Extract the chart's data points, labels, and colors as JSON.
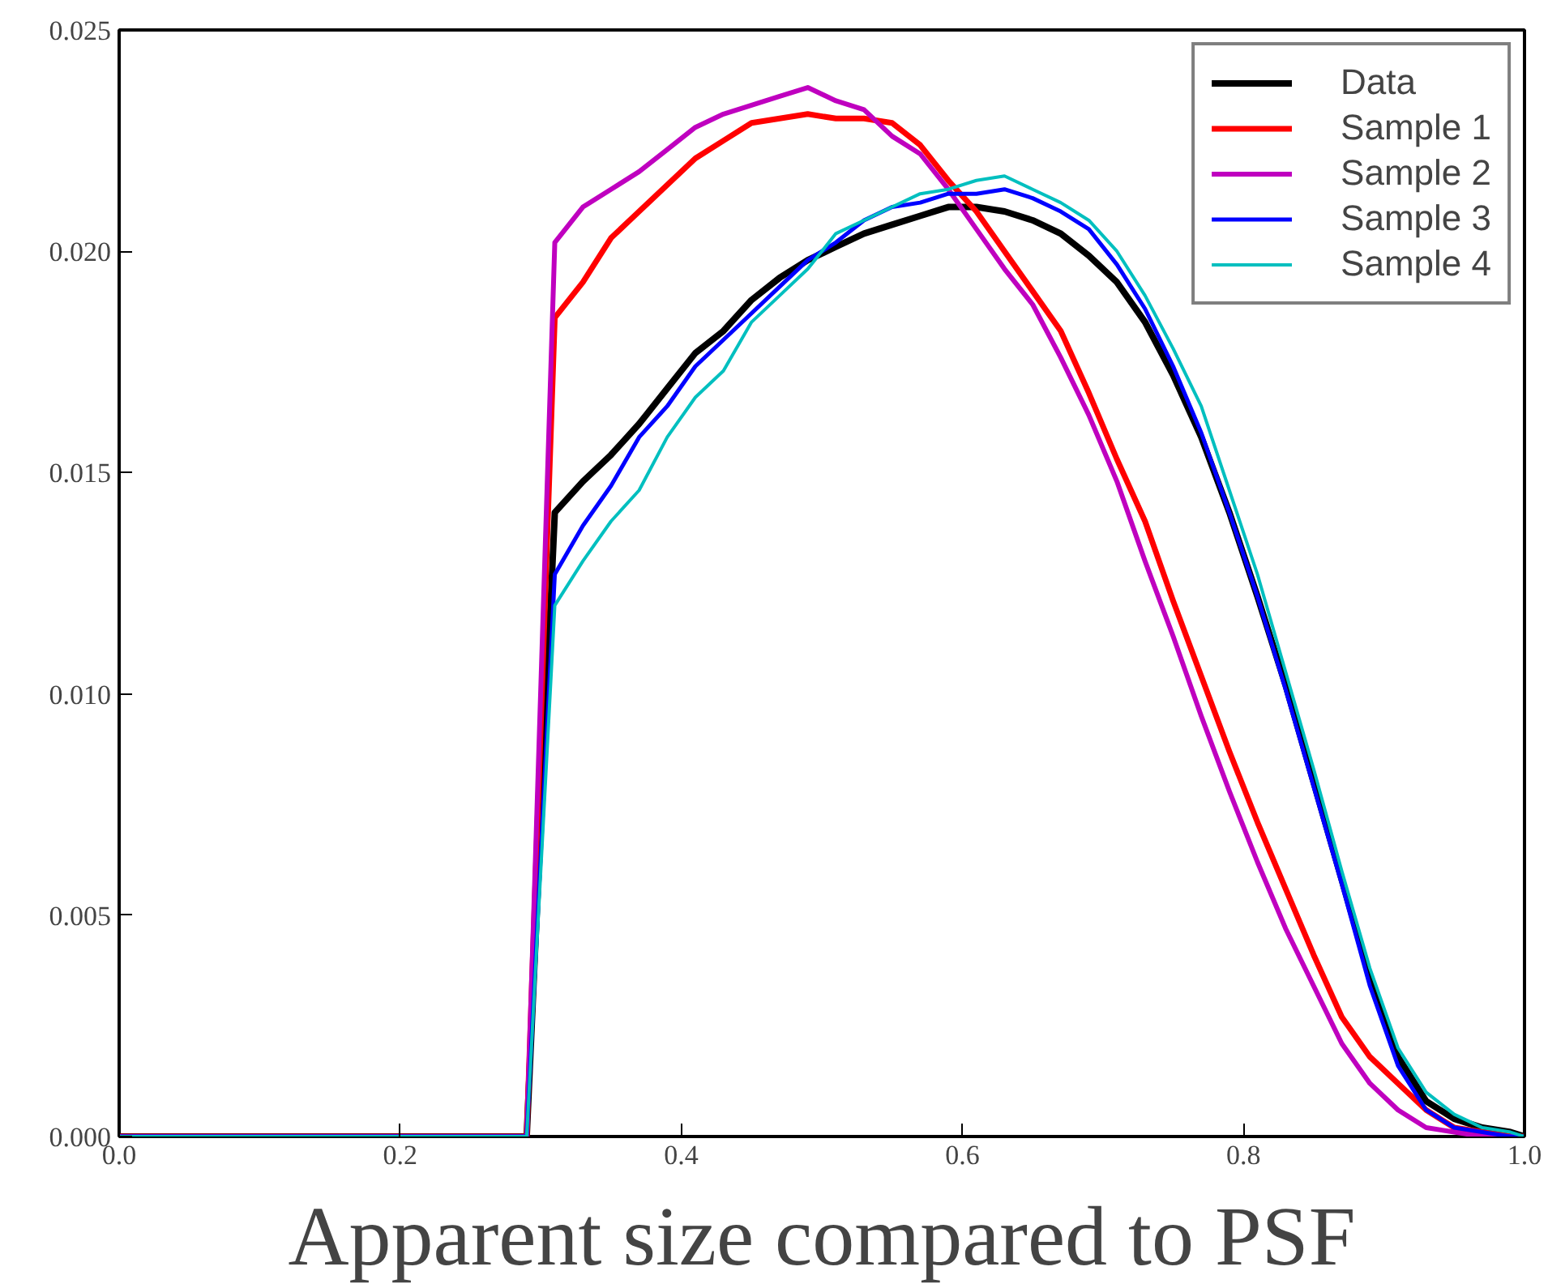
{
  "chart_data": {
    "type": "line",
    "xlabel": "Apparent size compared to PSF",
    "x": [
      0,
      0.29,
      0.31,
      0.33,
      0.35,
      0.37,
      0.39,
      0.41,
      0.43,
      0.45,
      0.47,
      0.49,
      0.51,
      0.53,
      0.55,
      0.57,
      0.59,
      0.61,
      0.63,
      0.65,
      0.67,
      0.69,
      0.71,
      0.73,
      0.75,
      0.77,
      0.79,
      0.81,
      0.83,
      0.85,
      0.87,
      0.89,
      0.91,
      0.93,
      0.95,
      0.97,
      0.99,
      1.0
    ],
    "series": [
      {
        "name": "Data",
        "color": "#000000",
        "values": [
          0,
          0,
          0.0141,
          0.0148,
          0.0154,
          0.0161,
          0.0169,
          0.0177,
          0.0182,
          0.0189,
          0.0194,
          0.0198,
          0.0201,
          0.0204,
          0.0206,
          0.0208,
          0.021,
          0.021,
          0.0209,
          0.0207,
          0.0204,
          0.0199,
          0.0193,
          0.0184,
          0.0172,
          0.0158,
          0.0141,
          0.0122,
          0.0102,
          0.008,
          0.0058,
          0.0036,
          0.0018,
          0.0008,
          0.0004,
          0.0002,
          0.0001,
          0
        ]
      },
      {
        "name": "Sample 1",
        "color": "#ff0000",
        "values": [
          0,
          0,
          0.0185,
          0.0193,
          0.0203,
          0.0209,
          0.0215,
          0.0221,
          0.0225,
          0.0229,
          0.023,
          0.0231,
          0.023,
          0.023,
          0.0229,
          0.0224,
          0.0216,
          0.0209,
          0.02,
          0.0191,
          0.0182,
          0.0168,
          0.0153,
          0.0139,
          0.0121,
          0.0104,
          0.0087,
          0.0071,
          0.0056,
          0.0041,
          0.0027,
          0.0018,
          0.0012,
          0.0006,
          0.0002,
          0.0001,
          0,
          0
        ]
      },
      {
        "name": "Sample 2",
        "color": "#bf00bf",
        "values": [
          0,
          0,
          0.0202,
          0.021,
          0.0214,
          0.0218,
          0.0223,
          0.0228,
          0.0231,
          0.0233,
          0.0235,
          0.0237,
          0.0234,
          0.0232,
          0.0226,
          0.0222,
          0.0214,
          0.0205,
          0.0196,
          0.0188,
          0.0176,
          0.0163,
          0.0148,
          0.013,
          0.0113,
          0.0095,
          0.0078,
          0.0062,
          0.0047,
          0.0034,
          0.0021,
          0.0012,
          0.0006,
          0.0002,
          0.0001,
          0,
          0,
          0
        ]
      },
      {
        "name": "Sample 3",
        "color": "#0000ff",
        "values": [
          0,
          0,
          0.0127,
          0.0138,
          0.0147,
          0.0158,
          0.0165,
          0.0174,
          0.018,
          0.0186,
          0.0192,
          0.0198,
          0.0202,
          0.0207,
          0.021,
          0.0211,
          0.0213,
          0.0213,
          0.0214,
          0.0212,
          0.0209,
          0.0205,
          0.0197,
          0.0187,
          0.0174,
          0.0159,
          0.0141,
          0.0122,
          0.0101,
          0.0079,
          0.0057,
          0.0034,
          0.0016,
          0.0006,
          0.0002,
          0.0001,
          0,
          0
        ]
      },
      {
        "name": "Sample 4",
        "color": "#00bfbf",
        "values": [
          0,
          0,
          0.012,
          0.013,
          0.0139,
          0.0146,
          0.0158,
          0.0167,
          0.0173,
          0.0184,
          0.019,
          0.0196,
          0.0204,
          0.0207,
          0.021,
          0.0213,
          0.0214,
          0.0216,
          0.0217,
          0.0214,
          0.0211,
          0.0207,
          0.02,
          0.019,
          0.0178,
          0.0165,
          0.0146,
          0.0127,
          0.0105,
          0.0083,
          0.006,
          0.0038,
          0.002,
          0.001,
          0.0005,
          0.0002,
          0.0001,
          0
        ]
      }
    ],
    "xlim": [
      0.0,
      1.0
    ],
    "ylim": [
      0.0,
      0.025
    ],
    "xticks": [
      {
        "value": 0,
        "label": "0.0"
      },
      {
        "value": 0.2,
        "label": "0.2"
      },
      {
        "value": 0.4,
        "label": "0.4"
      },
      {
        "value": 0.6,
        "label": "0.6"
      },
      {
        "value": 0.8,
        "label": "0.8"
      },
      {
        "value": 1.0,
        "label": "1.0"
      }
    ],
    "yticks": [
      {
        "value": 0,
        "label": "0.000"
      },
      {
        "value": 0.005,
        "label": "0.005"
      },
      {
        "value": 0.01,
        "label": "0.010"
      },
      {
        "value": 0.015,
        "label": "0.015"
      },
      {
        "value": 0.02,
        "label": "0.020"
      },
      {
        "value": 0.025,
        "label": "0.025"
      }
    ],
    "grid": false,
    "legend": "top right",
    "line_style": "solid",
    "marker": "none"
  }
}
